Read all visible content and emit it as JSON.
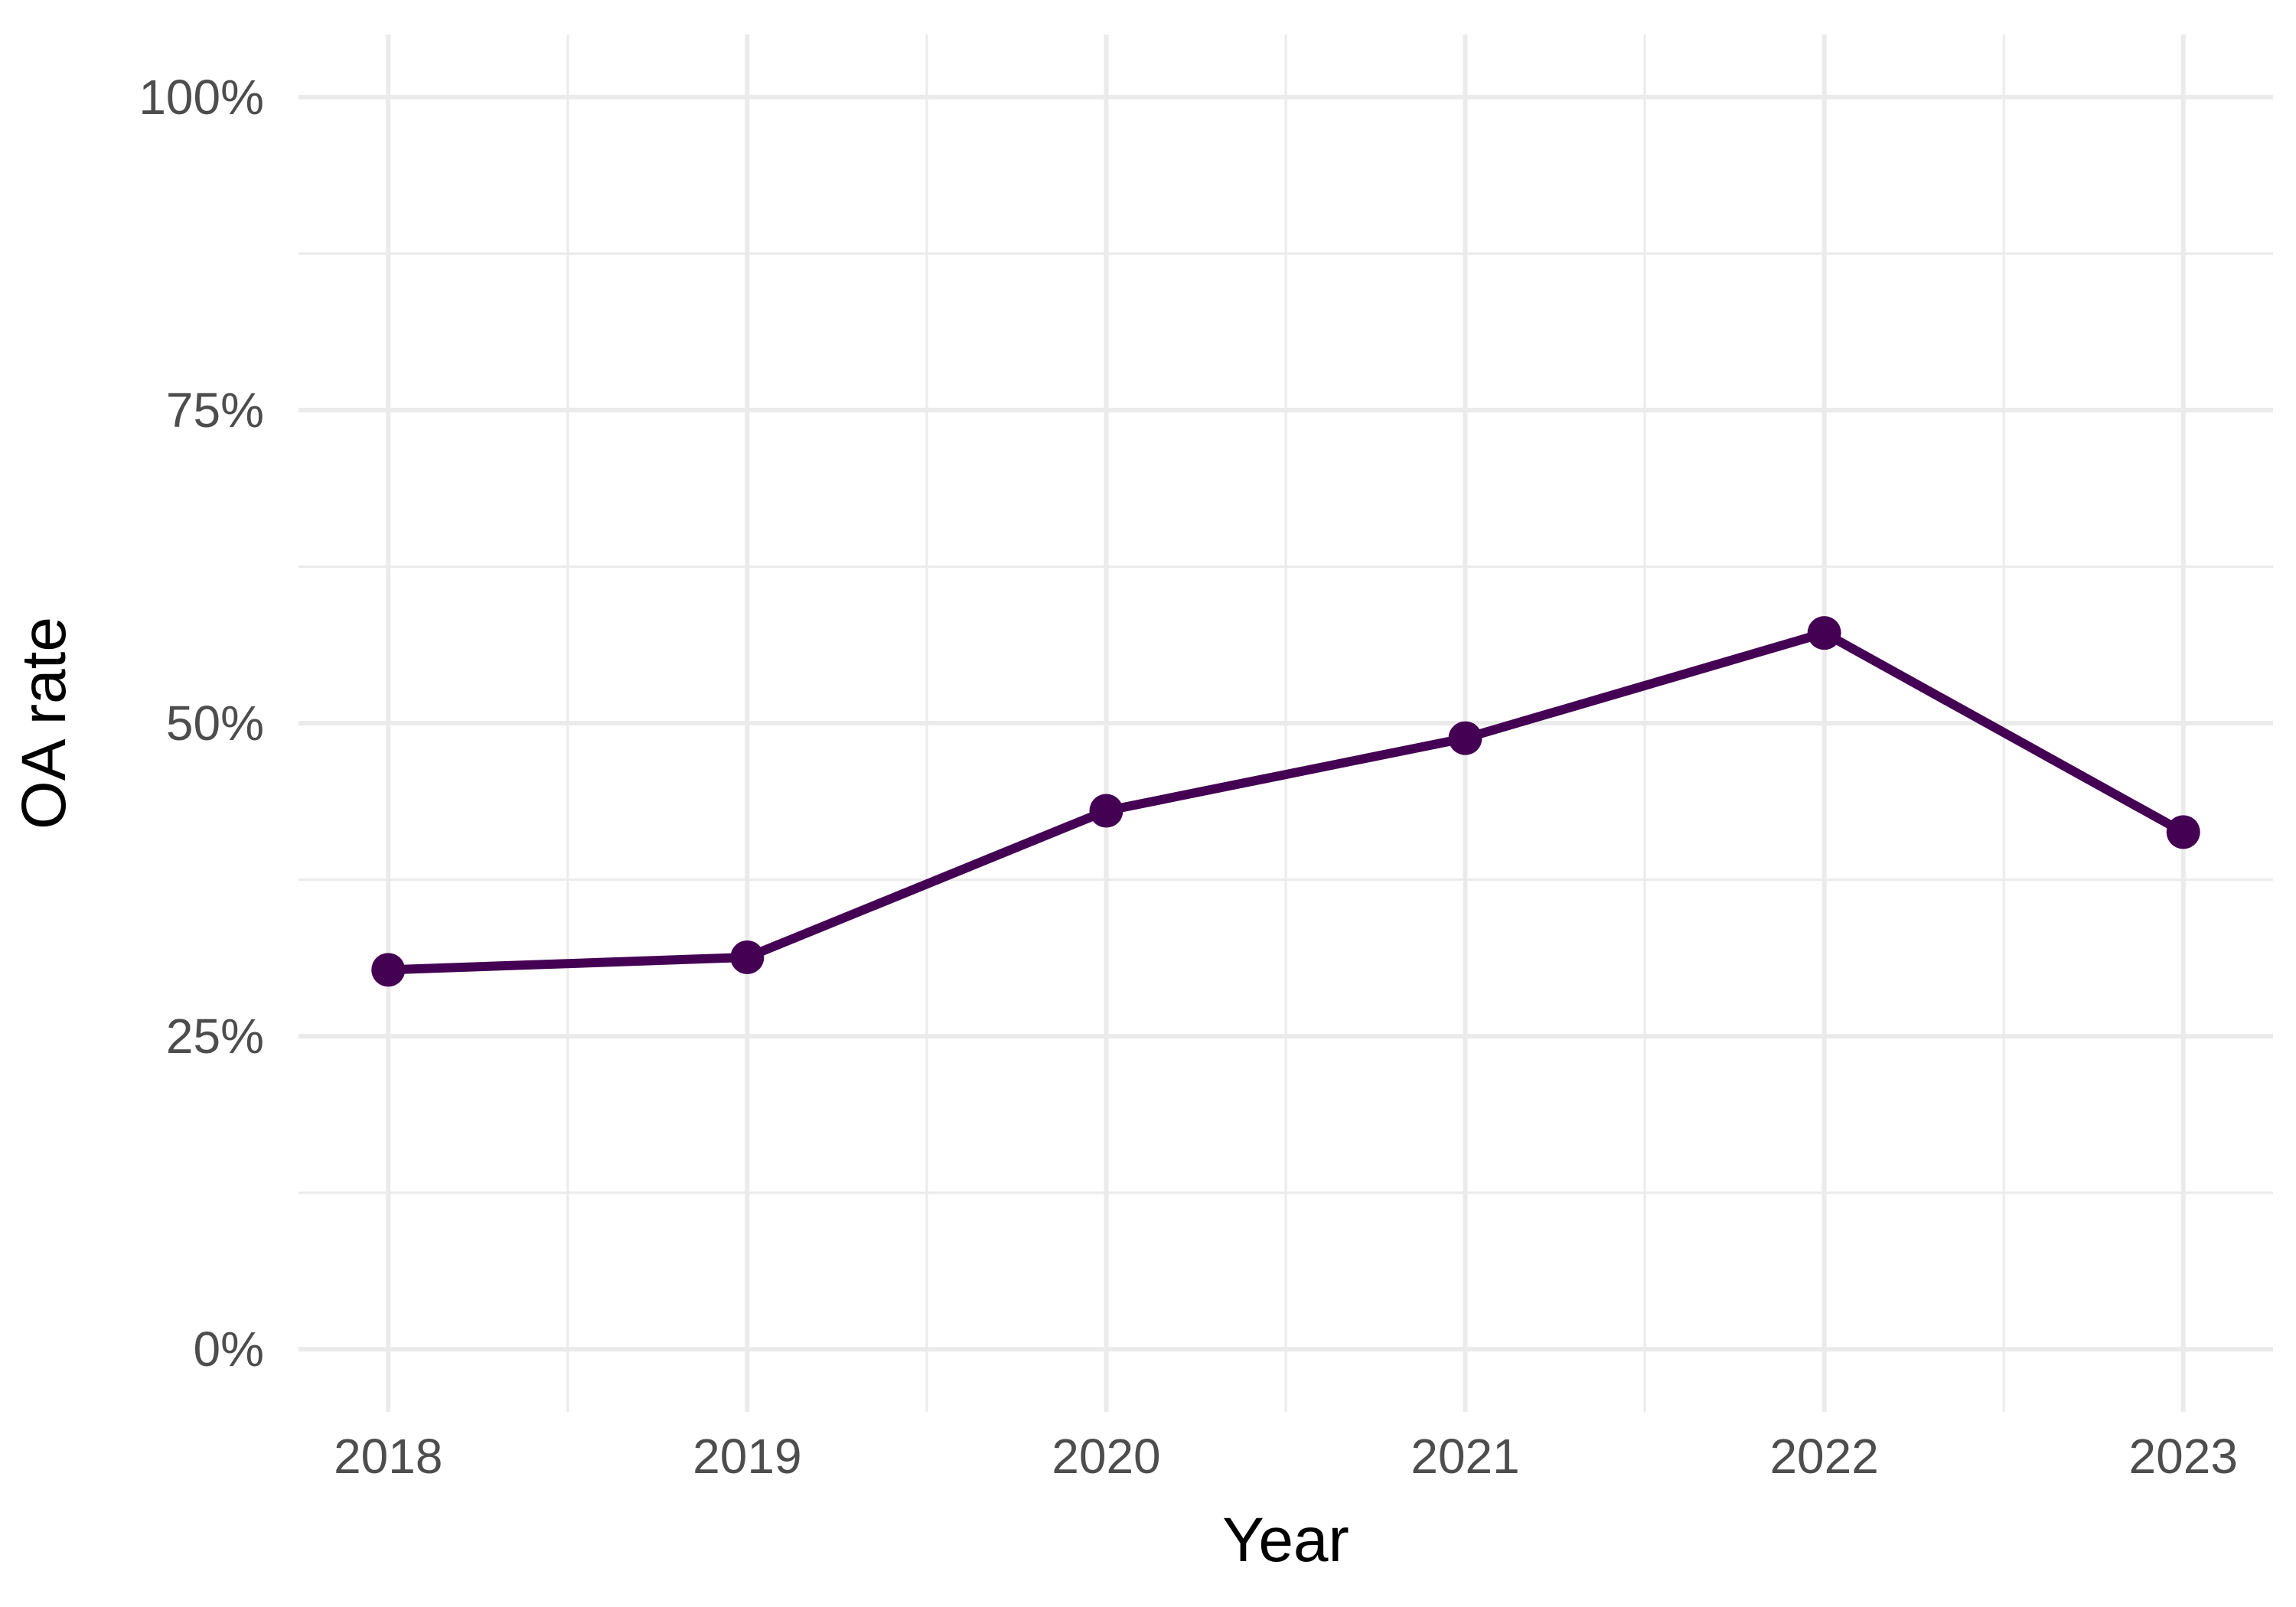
{
  "chart_data": {
    "type": "line",
    "title": "",
    "xlabel": "Year",
    "ylabel": "OA rate",
    "x": [
      2018,
      2019,
      2020,
      2021,
      2022,
      2023
    ],
    "series": [
      {
        "values": [
          0.303,
          0.313,
          0.43,
          0.488,
          0.572,
          0.413
        ]
      }
    ],
    "ylim": [
      0,
      1
    ],
    "y_ticks": [
      0,
      0.25,
      0.5,
      0.75,
      1
    ],
    "y_tick_labels": [
      "0%",
      "25%",
      "50%",
      "75%",
      "100%"
    ],
    "x_tick_labels": [
      "2018",
      "2019",
      "2020",
      "2021",
      "2022",
      "2023"
    ],
    "grid": true,
    "legend": "none",
    "colors": {
      "series": "#440154",
      "grid": "#ebebeb",
      "tick_text": "#4d4d4d",
      "axis_title": "#000000"
    }
  }
}
